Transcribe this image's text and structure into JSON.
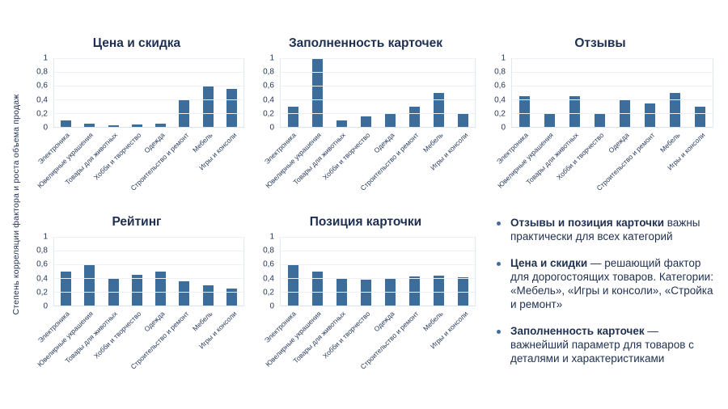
{
  "ylabel": "Степень корреляции фактора и роста объема продаж",
  "colors": {
    "bar": "#3D6D9B",
    "title_text": "#1E2F52",
    "body_text": "#1F3050",
    "gridline": "#ECF1F7",
    "bullet_dot": "#44699B"
  },
  "yticks": [
    "1",
    "0,8",
    "0,6",
    "0,4",
    "0,2",
    "0"
  ],
  "categories": [
    "Электроника",
    "Ювелирные украшения",
    "Товары для животных",
    "Хобби и творчество",
    "Одежда",
    "Строительство и ремонт",
    "Мебель",
    "Игры и консоли"
  ],
  "chart_data": [
    {
      "type": "bar",
      "title": "Цена и скидка",
      "categories": [
        "Электроника",
        "Ювелирные украшения",
        "Товары для животных",
        "Хобби и творчество",
        "Одежда",
        "Строительство и ремонт",
        "Мебель",
        "Игры и консоли"
      ],
      "values": [
        0.1,
        0.05,
        0.02,
        0.03,
        0.05,
        0.4,
        0.6,
        0.55
      ],
      "ylabel": "Степень корреляции фактора и роста объема продаж",
      "ylim": [
        0,
        1
      ],
      "grid": true,
      "legend": false
    },
    {
      "type": "bar",
      "title": "Заполненность карточек",
      "categories": [
        "Электроника",
        "Ювелирные украшения",
        "Товары для животных",
        "Хобби и творчество",
        "Одежда",
        "Строительство и ремонт",
        "Мебель",
        "Игры и консоли"
      ],
      "values": [
        0.3,
        1.0,
        0.1,
        0.15,
        0.2,
        0.3,
        0.5,
        0.2
      ],
      "ylim": [
        0,
        1
      ],
      "grid": true,
      "legend": false
    },
    {
      "type": "bar",
      "title": "Отзывы",
      "categories": [
        "Электроника",
        "Ювелирные украшения",
        "Товары для животных",
        "Хобби и творчество",
        "Одежда",
        "Строительство и ремонт",
        "Мебель",
        "Игры и консоли"
      ],
      "values": [
        0.45,
        0.2,
        0.45,
        0.2,
        0.4,
        0.34,
        0.5,
        0.3
      ],
      "ylim": [
        0,
        1
      ],
      "grid": true,
      "legend": false
    },
    {
      "type": "bar",
      "title": "Рейтинг",
      "categories": [
        "Электроника",
        "Ювелирные украшения",
        "Товары для животных",
        "Хобби и творчество",
        "Одежда",
        "Строительство и ремонт",
        "Мебель",
        "Игры и консоли"
      ],
      "values": [
        0.5,
        0.6,
        0.4,
        0.45,
        0.5,
        0.35,
        0.3,
        0.25
      ],
      "ylim": [
        0,
        1
      ],
      "grid": true,
      "legend": false
    },
    {
      "type": "bar",
      "title": "Позиция карточки",
      "categories": [
        "Электроника",
        "Ювелирные украшения",
        "Товары для животных",
        "Хобби и творчество",
        "Одежда",
        "Строительство и ремонт",
        "Мебель",
        "Игры и консоли"
      ],
      "values": [
        0.6,
        0.5,
        0.4,
        0.38,
        0.4,
        0.42,
        0.43,
        0.41
      ],
      "ylim": [
        0,
        1
      ],
      "grid": true,
      "legend": false
    }
  ],
  "insights": {
    "bullets": [
      {
        "lead": "Отзывы и позиция карточки",
        "rest": " важны практически для всех категорий"
      },
      {
        "lead": "Цена и скидки",
        "rest": " — решающий фактор для дорогостоящих товаров. Категории: «Мебель», «Игры и консоли», «Стройка и ремонт»"
      },
      {
        "lead": "Заполненность карточек",
        "rest": " — важнейший параметр для товаров с деталями и характеристиками"
      }
    ]
  }
}
